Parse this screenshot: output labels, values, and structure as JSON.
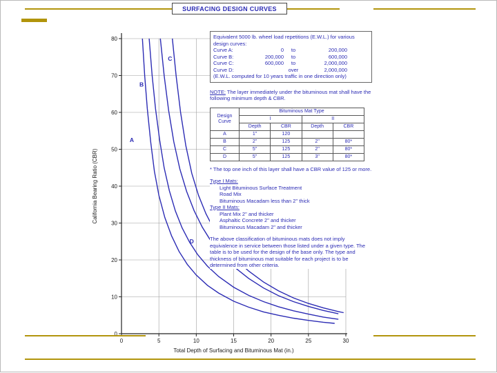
{
  "slide": {
    "title": "SURFACING DESIGN CURVES",
    "accent_color": "#b1940b",
    "text_color": "#2b2bb4"
  },
  "chart_data": {
    "type": "line",
    "title": "SURFACING DESIGN CURVES",
    "xlabel": "Total Depth of Surfacing and Bituminous Mat (in.)",
    "ylabel": "California Bearing Ratio (CBR)",
    "xlim": [
      0,
      30
    ],
    "ylim": [
      0,
      80
    ],
    "xticks": [
      0,
      5,
      10,
      15,
      20,
      25,
      30
    ],
    "yticks": [
      0,
      10,
      20,
      30,
      40,
      50,
      60,
      70,
      80
    ],
    "grid": true,
    "legend_position": "labels-on-curves",
    "curve_color": "#2b2bb4",
    "series": [
      {
        "name": "A",
        "label_at": [
          1.1,
          52
        ],
        "points": [
          [
            2.8,
            80
          ],
          [
            3.1,
            70
          ],
          [
            3.45,
            61
          ],
          [
            3.9,
            52
          ],
          [
            4.4,
            44
          ],
          [
            5.0,
            37.5
          ],
          [
            5.8,
            31.5
          ],
          [
            6.7,
            26.5
          ],
          [
            7.7,
            22.3
          ],
          [
            8.8,
            18.8
          ],
          [
            10,
            15.9
          ],
          [
            11.5,
            13.1
          ],
          [
            13,
            11
          ],
          [
            15,
            8.8
          ],
          [
            17,
            7.2
          ],
          [
            19,
            5.9
          ],
          [
            21,
            5.0
          ],
          [
            23,
            4.2
          ],
          [
            25,
            3.6
          ],
          [
            27,
            3.1
          ],
          [
            28.5,
            2.8
          ]
        ]
      },
      {
        "name": "B",
        "label_at": [
          2.4,
          67
        ],
        "points": [
          [
            3.7,
            80
          ],
          [
            4.1,
            70
          ],
          [
            4.55,
            61
          ],
          [
            5.1,
            52.5
          ],
          [
            5.7,
            45
          ],
          [
            6.4,
            38.8
          ],
          [
            7.2,
            33.3
          ],
          [
            8.1,
            28.7
          ],
          [
            9.1,
            24.8
          ],
          [
            10.2,
            21.4
          ],
          [
            11.5,
            18.3
          ],
          [
            13,
            15.5
          ],
          [
            15,
            12.6
          ],
          [
            17,
            10.4
          ],
          [
            19,
            8.7
          ],
          [
            21,
            7.3
          ],
          [
            23,
            6.2
          ],
          [
            25,
            5.3
          ],
          [
            27,
            4.5
          ],
          [
            29,
            3.9
          ]
        ]
      },
      {
        "name": "C",
        "label_at": [
          6.2,
          74
        ],
        "points": [
          [
            5.2,
            80
          ],
          [
            5.7,
            70
          ],
          [
            6.3,
            60.5
          ],
          [
            7.0,
            52
          ],
          [
            7.8,
            44.7
          ],
          [
            8.7,
            38.6
          ],
          [
            9.7,
            33.4
          ],
          [
            10.8,
            28.9
          ],
          [
            12,
            25
          ],
          [
            13.5,
            21.2
          ],
          [
            15,
            18.2
          ],
          [
            17,
            15
          ],
          [
            19,
            12.4
          ],
          [
            21,
            10.3
          ],
          [
            23,
            8.7
          ],
          [
            25,
            7.4
          ],
          [
            27,
            6.3
          ],
          [
            29,
            5.4
          ]
        ]
      },
      {
        "name": "D",
        "label_at": [
          9.1,
          24.5
        ],
        "points": [
          [
            6.8,
            80
          ],
          [
            7.3,
            70
          ],
          [
            7.9,
            60
          ],
          [
            8.6,
            51
          ],
          [
            9.4,
            43.5
          ],
          [
            10.3,
            37.5
          ],
          [
            11.3,
            32.5
          ],
          [
            12.5,
            27.8
          ],
          [
            14,
            23.3
          ],
          [
            15.5,
            19.8
          ],
          [
            17,
            17
          ],
          [
            19,
            14
          ],
          [
            21,
            11.6
          ],
          [
            23,
            9.7
          ],
          [
            25,
            8.2
          ],
          [
            27,
            7.0
          ],
          [
            29,
            6.0
          ],
          [
            29.7,
            5.7
          ]
        ]
      }
    ]
  },
  "ewl": {
    "intro": "Equivalent 5000 lb. wheel load repetitions (E.W.L.) for various design curves:",
    "rows": [
      [
        "Curve A:",
        "0",
        "to",
        "200,000"
      ],
      [
        "Curve B:",
        "200,000",
        "to",
        "600,000"
      ],
      [
        "Curve C:",
        "600,000",
        "to",
        "2,000,000"
      ],
      [
        "Curve D:",
        "",
        "over",
        "2,000,000"
      ]
    ],
    "footer": "(E.W.L. computed for 10 years traffic in one direction only)"
  },
  "note": {
    "label": "NOTE:",
    "text": "The layer immediately under the bituminous mat shall have the following minimum depth & CBR."
  },
  "table": {
    "design_header_line1": "Design",
    "design_header_line2": "Curve",
    "group_header": "Bituminous Mat Type",
    "type1": "I",
    "type2": "II",
    "sub_headers": [
      "Depth",
      "CBR",
      "Depth",
      "CBR"
    ],
    "rows": [
      [
        "A",
        "1\"",
        "120",
        "",
        ""
      ],
      [
        "B",
        "2\"",
        "125",
        "2\"",
        "80*"
      ],
      [
        "C",
        "5\"",
        "125",
        "2\"",
        "80*"
      ],
      [
        "D",
        "5\"",
        "125",
        "3\"",
        "80*"
      ]
    ]
  },
  "footnote": "* The top one inch of this layer shall have a CBR value of 125 or more.",
  "mats": {
    "type1_title": "Type I Mats:",
    "type1_items": [
      "Light Bituminous Surface Treatment",
      "Road Mix",
      "Bituminous Macadam less than 2\" thick"
    ],
    "type2_title": "Type II Mats:",
    "type2_items": [
      "Plant Mix 2\" and thicker",
      "Asphaltic Concrete 2\" and thicker",
      "Bituminous Macadam 2\" and thicker"
    ]
  },
  "paragraph": "The above classification of bituminous mats does not imply equivalence in service between those listed under a given type.  The table is to be used for the design of the base only.  The type and thickness of bituminous mat suitable for each project is to be determined from other criteria."
}
